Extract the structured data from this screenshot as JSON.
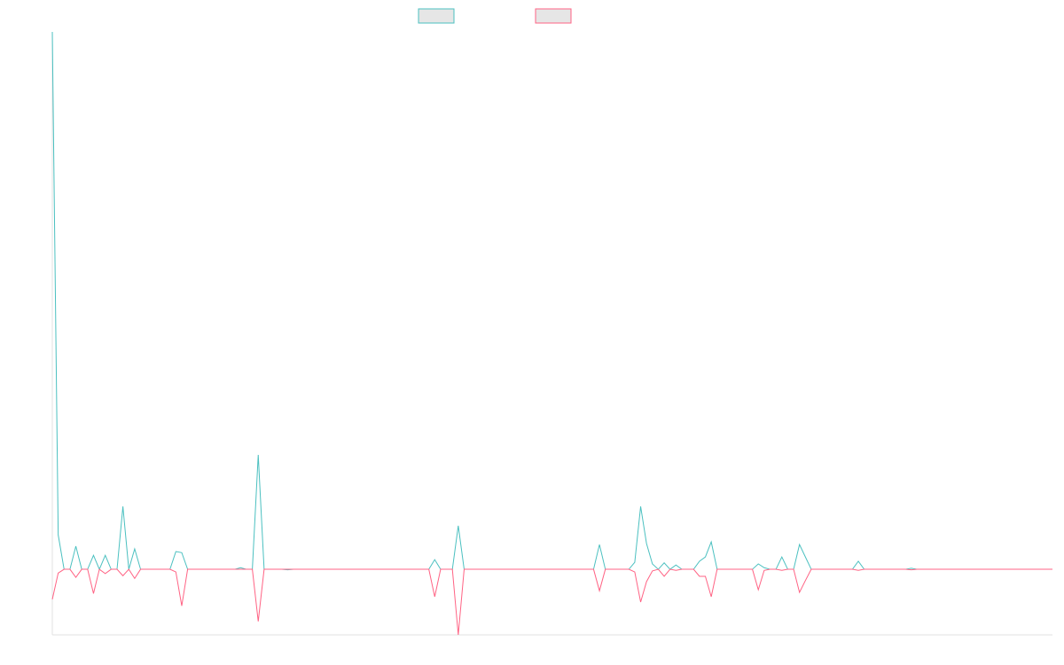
{
  "chart_data": {
    "type": "line",
    "ylim": [
      -12.2,
      100
    ],
    "series": [
      {
        "color": "#4bc0c0",
        "values": [
          100,
          6.4,
          0,
          0,
          4.3,
          0,
          0,
          2.6,
          0,
          2.6,
          0,
          0,
          11.7,
          0,
          3.8,
          0,
          0,
          0,
          0,
          0,
          0,
          3.3,
          3.1,
          0,
          0,
          0,
          0,
          0,
          0,
          0,
          0,
          0,
          0.3,
          0,
          0,
          21.3,
          0,
          0,
          0,
          0,
          -0.1,
          0,
          0,
          0,
          0,
          0,
          0,
          0,
          0,
          0,
          0,
          0,
          0,
          0,
          0,
          0,
          0,
          0,
          0,
          0,
          0,
          0,
          0,
          0,
          0,
          1.8,
          0,
          0,
          0,
          8.1,
          0,
          0,
          0,
          0,
          0,
          0,
          0,
          0,
          0,
          0,
          0,
          0,
          0,
          0,
          0,
          0,
          0,
          0,
          0,
          0,
          0,
          0,
          0,
          4.6,
          0,
          0,
          0,
          0,
          0,
          1.3,
          11.7,
          4.8,
          1.0,
          0,
          1.2,
          0,
          0.8,
          0,
          0,
          0,
          1.5,
          2.3,
          5.1,
          0,
          0,
          0,
          0,
          0,
          0,
          0,
          1.0,
          0.3,
          0,
          0,
          2.3,
          0,
          0,
          4.6,
          2.3,
          0,
          0,
          0,
          0,
          0,
          0,
          0,
          0,
          1.5,
          0,
          0,
          0,
          0,
          0,
          0,
          0,
          0,
          0.2,
          0,
          0,
          0,
          0,
          0,
          0,
          0,
          0,
          0,
          0,
          0,
          0,
          0,
          0,
          0,
          0,
          0,
          0,
          0,
          0,
          0,
          0,
          0,
          0
        ]
      },
      {
        "color": "#ff6384",
        "values": [
          -5.6,
          -0.7,
          0,
          0,
          -1.5,
          0,
          0,
          -4.5,
          0,
          -0.8,
          0,
          0,
          -1.2,
          0,
          -1.7,
          0,
          0,
          0,
          0,
          0,
          0,
          -0.5,
          -6.8,
          0,
          0,
          0,
          0,
          0,
          0,
          0,
          0,
          0,
          0,
          0,
          0,
          -9.7,
          0,
          0,
          0,
          0,
          0,
          0,
          0,
          0,
          0,
          0,
          0,
          0,
          0,
          0,
          0,
          0,
          0,
          0,
          0,
          0,
          0,
          0,
          0,
          0,
          0,
          0,
          0,
          0,
          0,
          -5.1,
          0,
          0,
          0,
          -12.2,
          0,
          0,
          0,
          0,
          0,
          0,
          0,
          0,
          0,
          0,
          0,
          0,
          0,
          0,
          0,
          0,
          0,
          0,
          0,
          0,
          0,
          0,
          0,
          -4.0,
          0,
          0,
          0,
          0,
          0,
          -0.5,
          -6.1,
          -2.3,
          -0.3,
          0,
          -1.3,
          0,
          -0.2,
          0,
          0,
          0,
          -1.3,
          -1.3,
          -5.1,
          0,
          0,
          0,
          0,
          0,
          0,
          0,
          -3.8,
          -0.2,
          0,
          0,
          -0.2,
          0,
          0,
          -4.3,
          -2.1,
          0,
          0,
          0,
          0,
          0,
          0,
          0,
          0,
          -0.2,
          0,
          0,
          0,
          0,
          0,
          0,
          0,
          0,
          -0.1,
          0,
          0,
          0,
          0,
          0,
          0,
          0,
          0,
          0,
          0,
          0,
          0,
          0,
          0,
          0,
          0,
          0,
          0,
          0,
          0,
          0,
          0,
          0,
          0
        ]
      }
    ]
  }
}
